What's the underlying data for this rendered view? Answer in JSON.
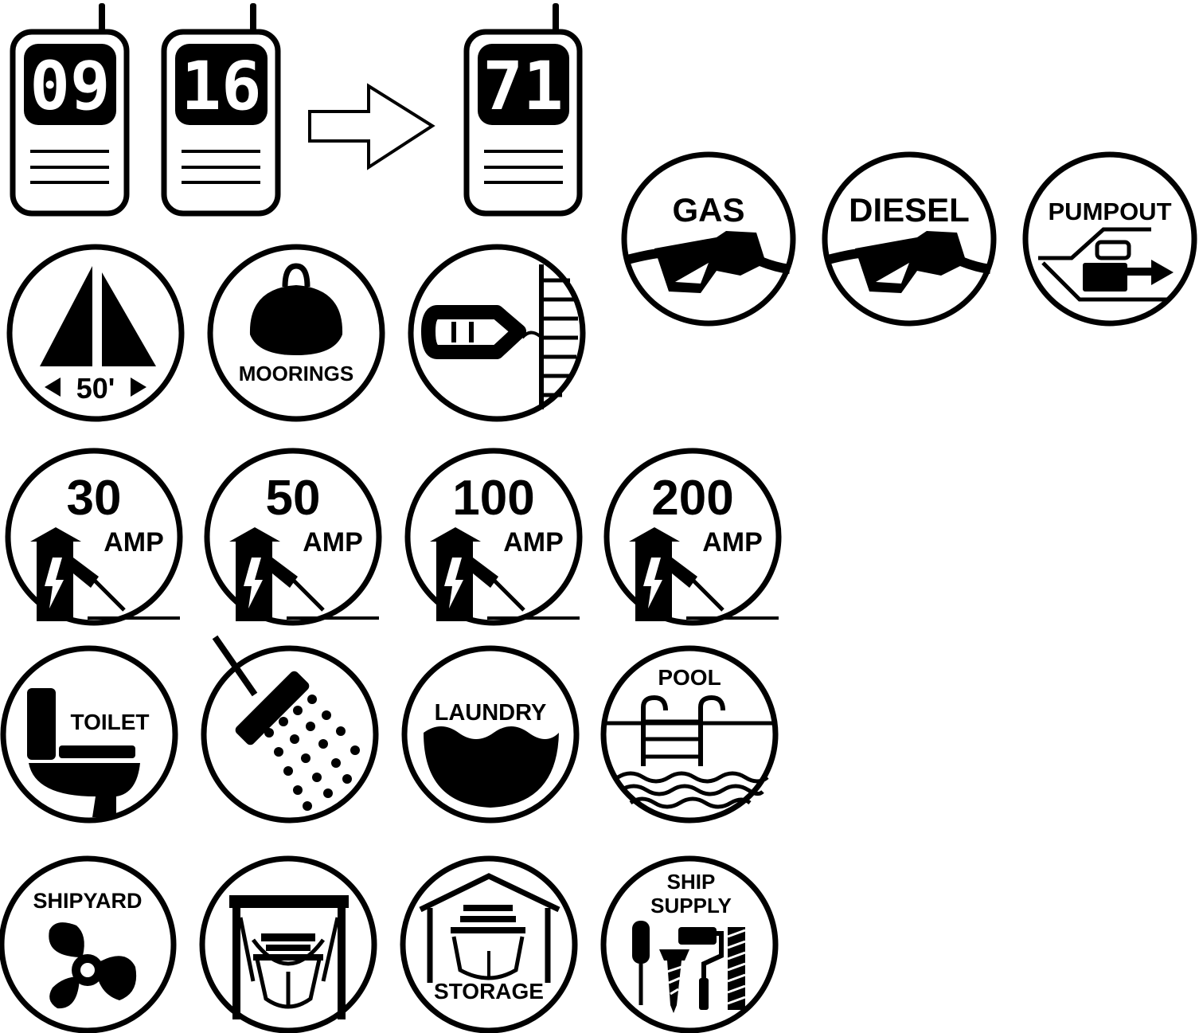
{
  "radios": [
    {
      "channel": "09"
    },
    {
      "channel": "16"
    },
    {
      "channel": "71"
    }
  ],
  "fuel": {
    "gas": "GAS",
    "diesel": "DIESEL",
    "pumpout": "PUMPOUT"
  },
  "dockage": {
    "length": "50'",
    "moorings": "MOORINGS"
  },
  "power": [
    {
      "amps": "30",
      "unit": "AMP"
    },
    {
      "amps": "50",
      "unit": "AMP"
    },
    {
      "amps": "100",
      "unit": "AMP"
    },
    {
      "amps": "200",
      "unit": "AMP"
    }
  ],
  "amenities": {
    "toilet": "TOILET",
    "laundry": "LAUNDRY",
    "pool": "POOL"
  },
  "services": {
    "shipyard": "SHIPYARD",
    "storage": "STORAGE",
    "ship_supply_line1": "SHIP",
    "ship_supply_line2": "SUPPLY"
  },
  "colors": {
    "ink": "#000000",
    "paper": "#ffffff"
  }
}
